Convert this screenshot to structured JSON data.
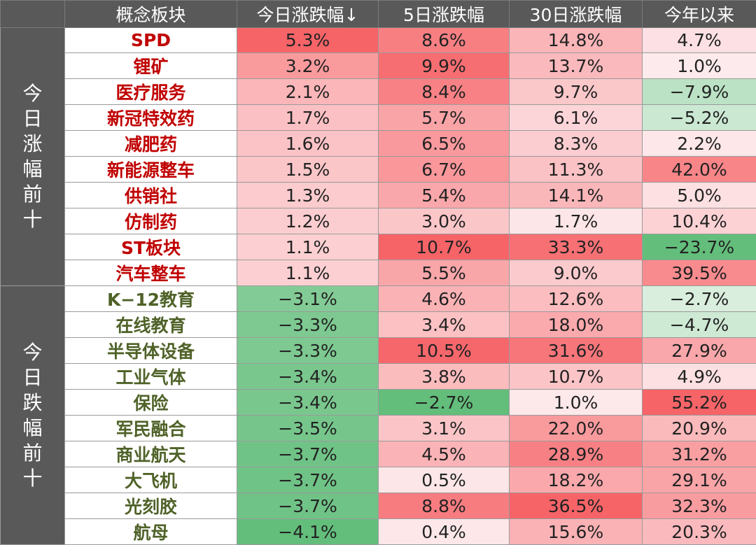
{
  "colors": {
    "header_bg": "#595959",
    "up_text": "#c00000",
    "down_text": "#4f6228"
  },
  "header": {
    "group": "",
    "name": "概念板块",
    "day": "今日涨跌幅↓",
    "d5": "5日涨跌幅",
    "d30": "30日涨跌幅",
    "ytd": "今年以来"
  },
  "groups": [
    {
      "label_chars": [
        "今",
        "日",
        "涨",
        "幅",
        "前",
        "十"
      ],
      "type": "up",
      "rows": [
        {
          "name": "SPD",
          "day": "5.3%",
          "d5": "8.6%",
          "d30": "14.8%",
          "ytd": "4.7%"
        },
        {
          "name": "锂矿",
          "day": "3.2%",
          "d5": "9.9%",
          "d30": "13.7%",
          "ytd": "1.0%"
        },
        {
          "name": "医疗服务",
          "day": "2.1%",
          "d5": "8.4%",
          "d30": "9.7%",
          "ytd": "−7.9%"
        },
        {
          "name": "新冠特效药",
          "day": "1.7%",
          "d5": "5.7%",
          "d30": "6.1%",
          "ytd": "−5.2%"
        },
        {
          "name": "减肥药",
          "day": "1.6%",
          "d5": "6.5%",
          "d30": "8.3%",
          "ytd": "2.2%"
        },
        {
          "name": "新能源整车",
          "day": "1.5%",
          "d5": "6.7%",
          "d30": "11.3%",
          "ytd": "42.0%"
        },
        {
          "name": "供销社",
          "day": "1.3%",
          "d5": "5.4%",
          "d30": "14.1%",
          "ytd": "5.0%"
        },
        {
          "name": "仿制药",
          "day": "1.2%",
          "d5": "3.0%",
          "d30": "1.7%",
          "ytd": "10.4%"
        },
        {
          "name": "ST板块",
          "day": "1.1%",
          "d5": "10.7%",
          "d30": "33.3%",
          "ytd": "−23.7%"
        },
        {
          "name": "汽车整车",
          "day": "1.1%",
          "d5": "5.5%",
          "d30": "9.0%",
          "ytd": "39.5%"
        }
      ]
    },
    {
      "label_chars": [
        "今",
        "日",
        "跌",
        "幅",
        "前",
        "十"
      ],
      "type": "down",
      "rows": [
        {
          "name": "K−12教育",
          "day": "−3.1%",
          "d5": "4.6%",
          "d30": "12.6%",
          "ytd": "−2.7%"
        },
        {
          "name": "在线教育",
          "day": "−3.3%",
          "d5": "3.4%",
          "d30": "18.0%",
          "ytd": "−4.7%"
        },
        {
          "name": "半导体设备",
          "day": "−3.3%",
          "d5": "10.5%",
          "d30": "31.6%",
          "ytd": "27.9%"
        },
        {
          "name": "工业气体",
          "day": "−3.4%",
          "d5": "3.8%",
          "d30": "10.7%",
          "ytd": "4.9%"
        },
        {
          "name": "保险",
          "day": "−3.4%",
          "d5": "−2.7%",
          "d30": "1.0%",
          "ytd": "55.2%"
        },
        {
          "name": "军民融合",
          "day": "−3.5%",
          "d5": "3.1%",
          "d30": "22.0%",
          "ytd": "20.9%"
        },
        {
          "name": "商业航天",
          "day": "−3.7%",
          "d5": "4.5%",
          "d30": "28.9%",
          "ytd": "31.2%"
        },
        {
          "name": "大飞机",
          "day": "−3.7%",
          "d5": "0.5%",
          "d30": "18.2%",
          "ytd": "29.1%"
        },
        {
          "name": "光刻胶",
          "day": "−3.7%",
          "d5": "8.8%",
          "d30": "36.5%",
          "ytd": "32.3%"
        },
        {
          "name": "航母",
          "day": "−4.1%",
          "d5": "0.4%",
          "d30": "15.6%",
          "ytd": "20.3%"
        }
      ]
    }
  ]
}
